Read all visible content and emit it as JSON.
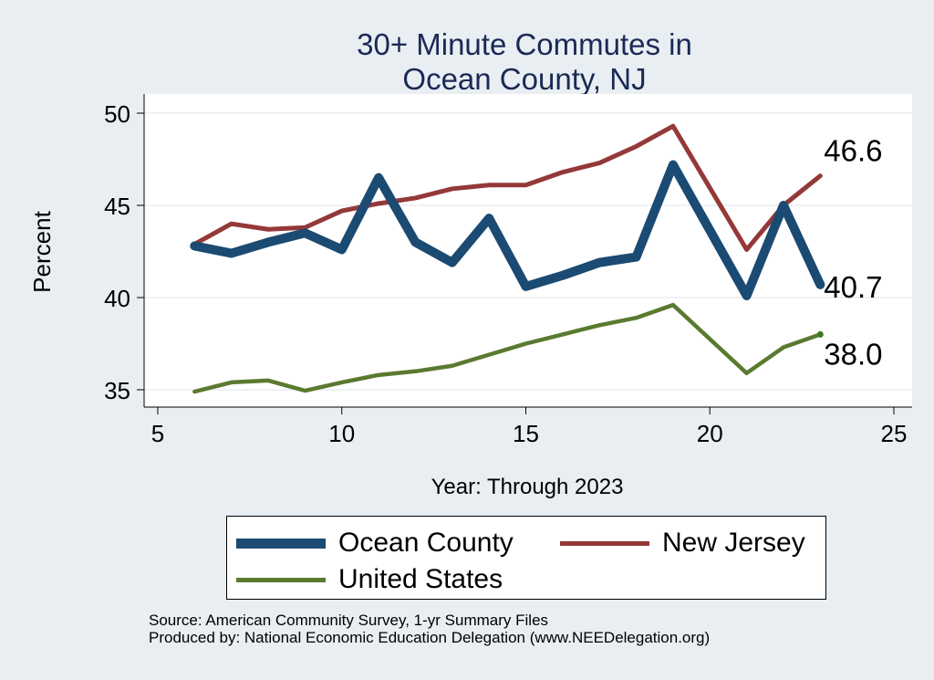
{
  "chart_data": {
    "type": "line",
    "title": [
      "30+ Minute Commutes in",
      "Ocean County, NJ"
    ],
    "xlabel": "Year: Through 2023",
    "ylabel": "Percent",
    "xlim": [
      5,
      25
    ],
    "ylim": [
      35,
      50
    ],
    "xticks": [
      5,
      10,
      15,
      20,
      25
    ],
    "yticks": [
      35,
      40,
      45,
      50
    ],
    "grid": true,
    "legend_position": "bottom",
    "series": [
      {
        "name": "Ocean County",
        "color": "#1b4a72",
        "x": [
          6,
          7,
          8,
          9,
          10,
          11,
          12,
          13,
          14,
          15,
          16,
          17,
          18,
          19,
          21,
          22,
          23
        ],
        "y": [
          42.8,
          42.4,
          43.0,
          43.5,
          42.6,
          46.5,
          43.0,
          41.9,
          44.3,
          40.6,
          41.2,
          41.9,
          42.2,
          47.2,
          40.1,
          45.0,
          40.7
        ],
        "end_label": "40.7"
      },
      {
        "name": "New Jersey",
        "color": "#943838",
        "x": [
          6,
          7,
          8,
          9,
          10,
          11,
          12,
          13,
          14,
          15,
          16,
          17,
          18,
          19,
          21,
          22,
          23
        ],
        "y": [
          42.9,
          44.0,
          43.7,
          43.8,
          44.7,
          45.1,
          45.4,
          45.9,
          46.1,
          46.1,
          46.8,
          47.3,
          48.2,
          49.3,
          42.6,
          45.0,
          46.6
        ],
        "end_label": "46.6"
      },
      {
        "name": "United States",
        "color": "#5a7a30",
        "x": [
          6,
          7,
          8,
          9,
          10,
          11,
          12,
          13,
          14,
          15,
          16,
          17,
          18,
          19,
          21,
          22,
          23
        ],
        "y": [
          34.9,
          35.4,
          35.5,
          34.95,
          35.4,
          35.8,
          36.0,
          36.3,
          36.9,
          37.5,
          38.0,
          38.5,
          38.9,
          39.6,
          35.9,
          37.3,
          38.0
        ],
        "end_label": "38.0"
      }
    ]
  },
  "legend": {
    "items": [
      "Ocean County",
      "New Jersey",
      "United States"
    ]
  },
  "source": {
    "line1": "Source: American Community Survey, 1-yr Summary Files",
    "line2": "Produced by: National Economic Education Delegation (www.NEEDelegation.org)"
  }
}
